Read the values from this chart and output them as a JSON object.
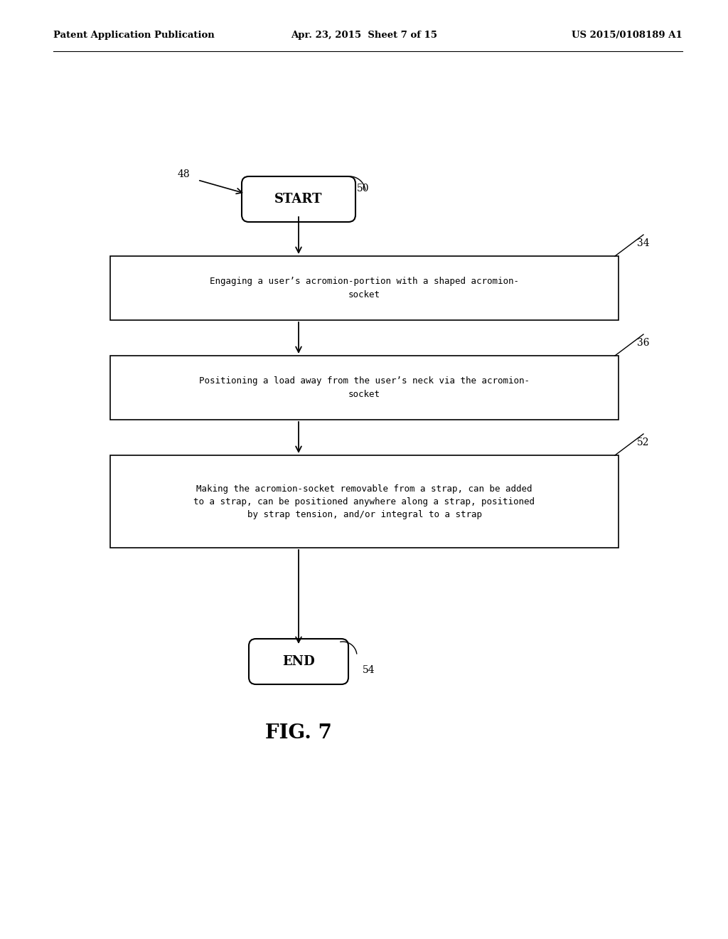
{
  "bg_color": "#ffffff",
  "header_left": "Patent Application Publication",
  "header_mid": "Apr. 23, 2015  Sheet 7 of 15",
  "header_right": "US 2015/0108189 A1",
  "fig_label": "FIG. 7",
  "start_label": "START",
  "end_label": "END",
  "label_48": "48",
  "label_50": "50",
  "label_54": "54",
  "label_34": "34",
  "label_36": "36",
  "label_52": "52",
  "box1_text": "Engaging a user’s acromion-portion with a shaped acromion-\nsocket",
  "box2_text": "Positioning a load away from the user’s neck via the acromion-\nsocket",
  "box3_text": "Making the acromion-socket removable from a strap, can be added\nto a strap, can be positioned anywhere along a strap, positioned\nby strap tension, and/or integral to a strap",
  "text_color": "#000000",
  "box_edge_color": "#000000",
  "arrow_color": "#000000",
  "header_line_color": "#000000"
}
